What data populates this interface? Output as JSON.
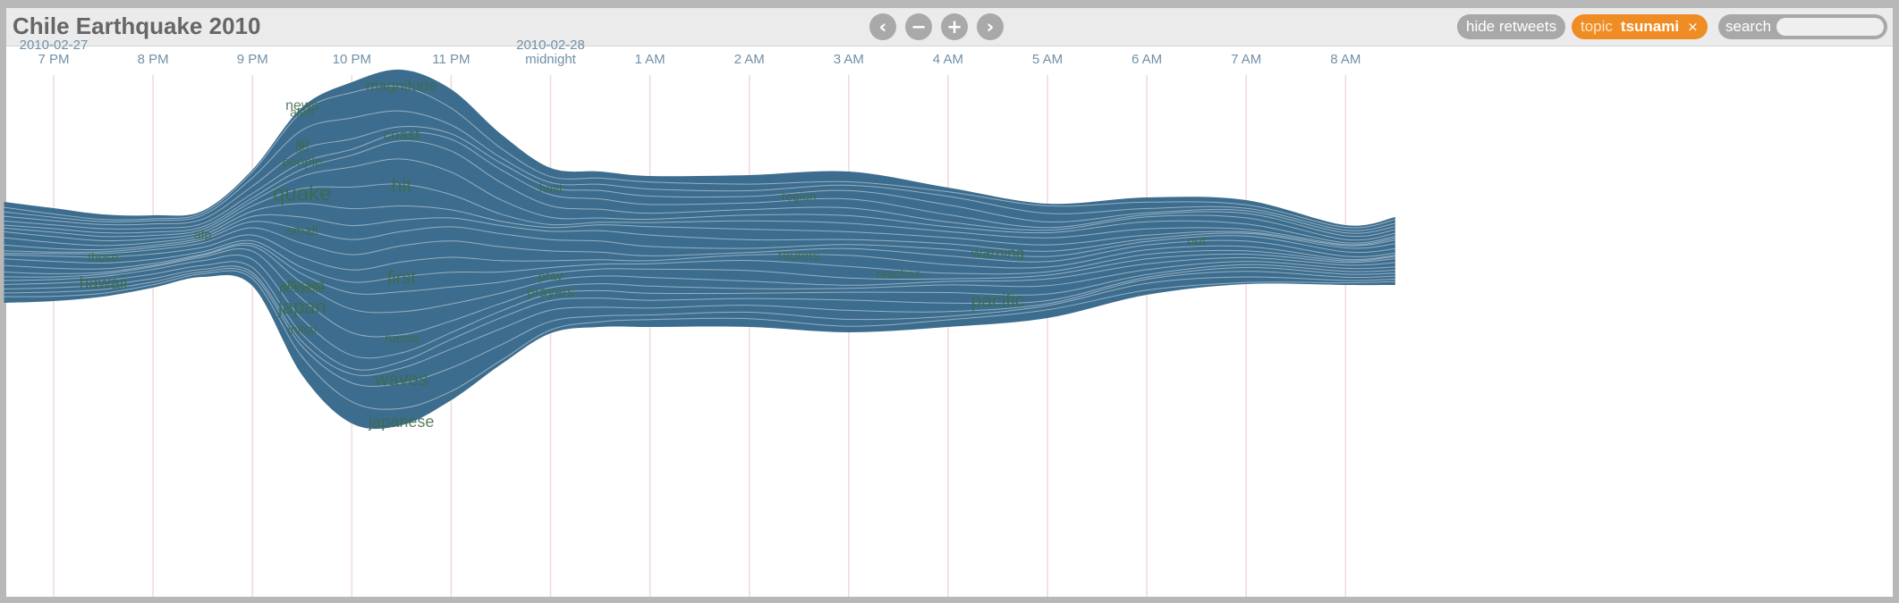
{
  "header": {
    "title": "Chile Earthquake 2010",
    "nav": {
      "prev": "‹",
      "zoom_out": "−",
      "zoom_in": "+",
      "next": "›"
    },
    "hide_retweets_label": "hide retweets",
    "topic_label": "topic",
    "topic_value": "tsunami",
    "topic_clear": "×",
    "search_label": "search",
    "search_value": ""
  },
  "chart_data": {
    "type": "area",
    "subtype": "streamgraph",
    "title": "",
    "x_dates": [
      "2010-02-27",
      "2010-02-28"
    ],
    "x_ticks": [
      "7 PM",
      "8 PM",
      "9 PM",
      "10 PM",
      "11 PM",
      "midnight",
      "1 AM",
      "2 AM",
      "3 AM",
      "4 AM",
      "5 AM",
      "6 AM",
      "7 AM",
      "8 AM"
    ],
    "gridlines": true,
    "legend": "none",
    "colors": {
      "top": "#c4db62",
      "mid": "#68be78",
      "low": "#5aae9c",
      "bottom": "#3f7a94",
      "label": "#3c6b46",
      "tick": "#7090a8"
    },
    "stream": {
      "t": [
        -0.5,
        0,
        0.5,
        1,
        1.5,
        2,
        2.5,
        3,
        3.5,
        4,
        4.5,
        5,
        5.5,
        6,
        7,
        8,
        9,
        10,
        11,
        12,
        13,
        13.5
      ],
      "top": [
        226,
        233,
        240,
        241,
        236,
        190,
        120,
        92,
        78,
        100,
        150,
        188,
        192,
        197,
        196,
        192,
        210,
        228,
        221,
        224,
        252,
        243
      ],
      "bottom": [
        339,
        337,
        332,
        322,
        310,
        320,
        420,
        474,
        476,
        448,
        408,
        373,
        366,
        366,
        366,
        372,
        366,
        356,
        330,
        318,
        319,
        319
      ]
    },
    "terms": [
      {
        "label": "magnitude",
        "t": 3.5,
        "value": 97,
        "size": 17
      },
      {
        "label": "news",
        "t": 2.5,
        "value": 119,
        "size": 16
      },
      {
        "label": "alert",
        "t": 2.5,
        "value": 127,
        "size": 14
      },
      {
        "label": "coast",
        "t": 3.5,
        "value": 152,
        "size": 17
      },
      {
        "label": "ap",
        "t": 2.5,
        "value": 160,
        "size": 13
      },
      {
        "label": "go",
        "t": 2.5,
        "value": 166,
        "size": 13
      },
      {
        "label": "people",
        "t": 2.5,
        "value": 182,
        "size": 15
      },
      {
        "label": "hit",
        "t": 3.5,
        "value": 209,
        "size": 21
      },
      {
        "label": "haiti",
        "t": 5,
        "value": 212,
        "size": 14
      },
      {
        "label": "quake",
        "t": 2.5,
        "value": 218,
        "size": 24
      },
      {
        "label": "region",
        "t": 7.5,
        "value": 221,
        "size": 14
      },
      {
        "label": "afp",
        "t": 1.5,
        "value": 264,
        "size": 14
      },
      {
        "label": "small",
        "t": 2.5,
        "value": 259,
        "size": 15
      },
      {
        "label": "out",
        "t": 11.5,
        "value": 271,
        "size": 15
      },
      {
        "label": "warning",
        "t": 9.5,
        "value": 284,
        "size": 17
      },
      {
        "label": "reuters",
        "t": 7.5,
        "value": 287,
        "size": 15
      },
      {
        "label": "those",
        "t": 0.5,
        "value": 289,
        "size": 14
      },
      {
        "label": "reaches",
        "t": 8.5,
        "value": 308,
        "size": 14
      },
      {
        "label": "first",
        "t": 3.5,
        "value": 312,
        "size": 20
      },
      {
        "label": "pray",
        "t": 5,
        "value": 310,
        "size": 14
      },
      {
        "label": "hawaii",
        "t": 0.5,
        "value": 318,
        "size": 19
      },
      {
        "label": "affected",
        "t": 2.5,
        "value": 320,
        "size": 14
      },
      {
        "label": "possible",
        "t": 2.5,
        "value": 324,
        "size": 14
      },
      {
        "label": "prayers",
        "t": 5,
        "value": 328,
        "size": 16
      },
      {
        "label": "pacific",
        "t": 9.5,
        "value": 338,
        "size": 21
      },
      {
        "label": "japan",
        "t": 2.5,
        "value": 345,
        "size": 22
      },
      {
        "label": "initial",
        "t": 2.5,
        "value": 370,
        "size": 14
      },
      {
        "label": "russia",
        "t": 3.5,
        "value": 380,
        "size": 14
      },
      {
        "label": "waves",
        "t": 3.5,
        "value": 426,
        "size": 21
      },
      {
        "label": "japanese",
        "t": 3.5,
        "value": 473,
        "size": 18
      }
    ]
  }
}
